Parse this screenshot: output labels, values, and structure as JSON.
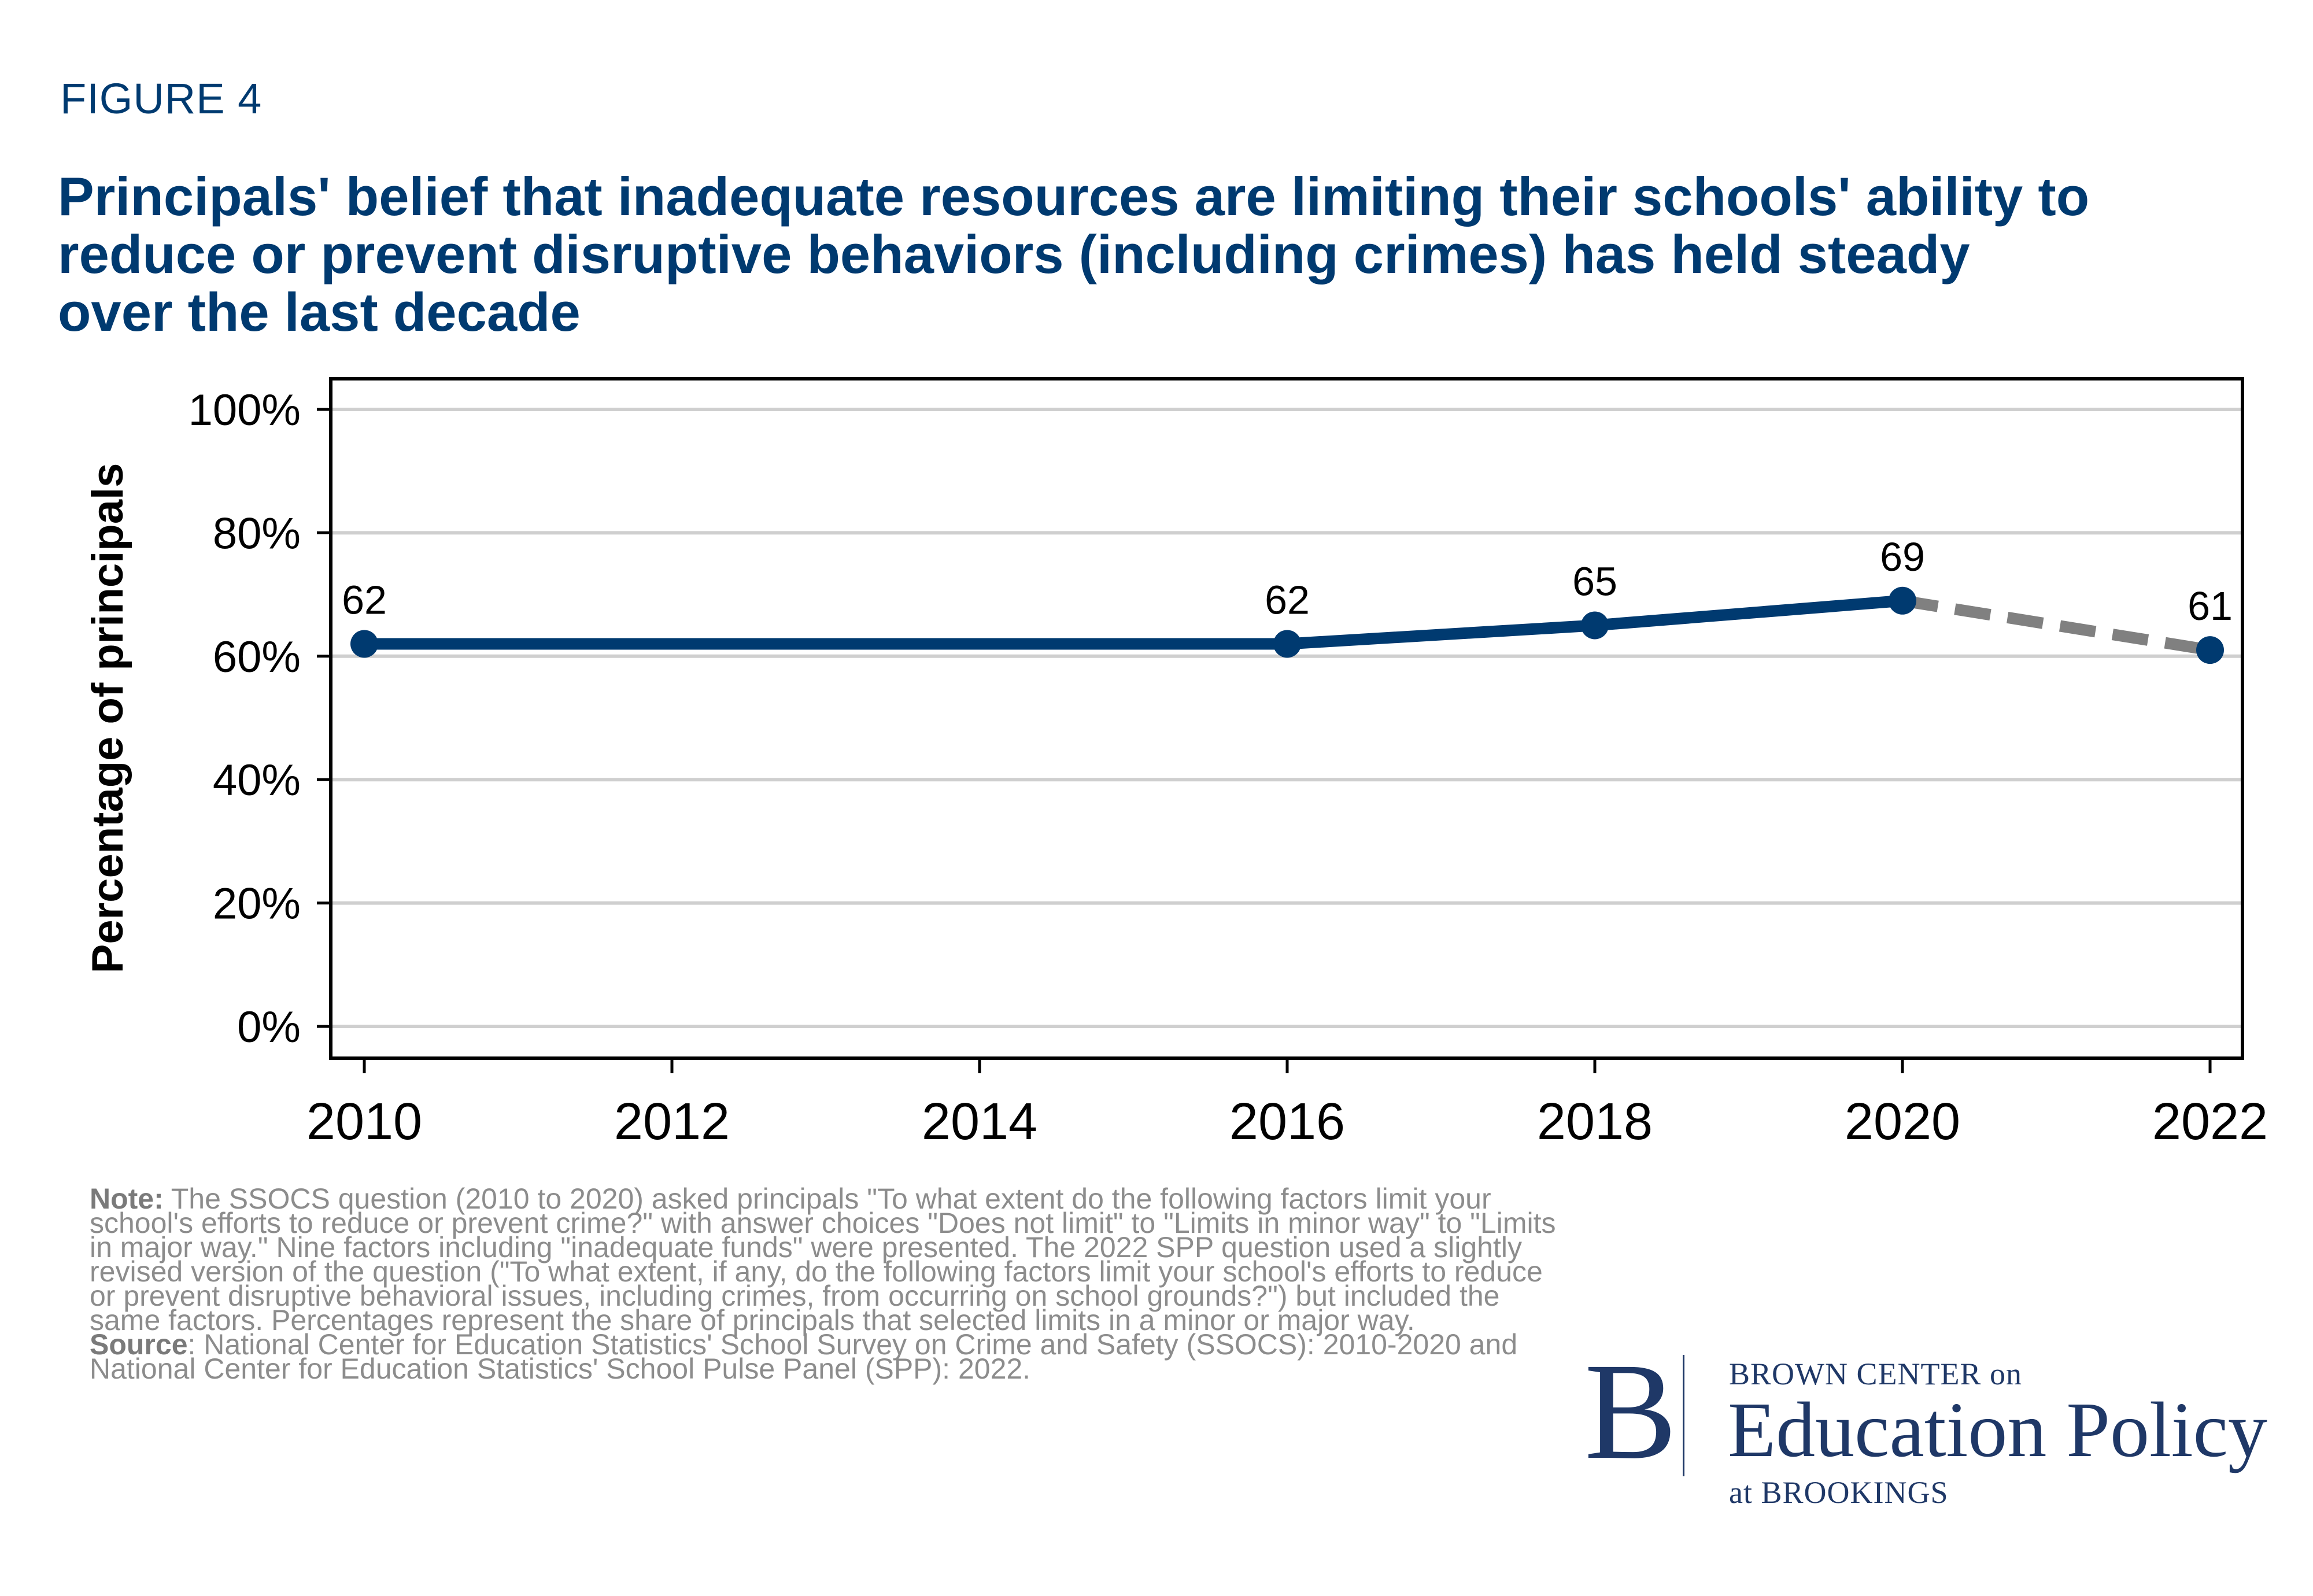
{
  "figure_label": "FIGURE 4",
  "title_lines": [
    "Principals' belief that inadequate resources are limiting their schools' ability to",
    "reduce or prevent disruptive behaviors (including crimes) has held steady",
    "over the last decade"
  ],
  "chart_data": {
    "type": "line",
    "ylabel": "Percentage of principals",
    "xlabel": "",
    "x_ticks": [
      "2010",
      "2012",
      "2014",
      "2016",
      "2018",
      "2020",
      "2022"
    ],
    "y_ticks": [
      "0%",
      "20%",
      "40%",
      "60%",
      "80%",
      "100%"
    ],
    "xlim": [
      2010,
      2022
    ],
    "ylim": [
      0,
      100
    ],
    "grid": true,
    "colors": {
      "line": "#003a70",
      "dashed": "#808080",
      "grid": "#cfcfcf",
      "axis": "#000000"
    },
    "series": [
      {
        "name": "SSOCS",
        "style": "solid",
        "x": [
          2010,
          2016,
          2018,
          2020
        ],
        "values": [
          62,
          62,
          65,
          69
        ]
      },
      {
        "name": "SPP",
        "style": "dashed",
        "x": [
          2020,
          2022
        ],
        "values": [
          69,
          61
        ]
      }
    ],
    "data_labels": [
      {
        "x": 2010,
        "y": 62,
        "text": "62"
      },
      {
        "x": 2016,
        "y": 62,
        "text": "62"
      },
      {
        "x": 2018,
        "y": 65,
        "text": "65"
      },
      {
        "x": 2020,
        "y": 69,
        "text": "69"
      },
      {
        "x": 2022,
        "y": 61,
        "text": "61"
      }
    ]
  },
  "note": {
    "note_label": "Note:",
    "note_text": " The SSOCS question (2010 to 2020) asked principals \"To what extent do the following factors limit your school's efforts to reduce or prevent crime?\" with answer choices \"Does not limit\" to \"Limits in minor way\" to \"Limits in major way.\" Nine factors including \"inadequate funds\" were presented. The 2022 SPP question used a slightly revised version of the question (\"To what extent, if any, do the following factors limit your school's efforts to reduce or prevent disruptive behavioral issues, including crimes, from occurring on school grounds?\") but included the same factors. Percentages represent the share of principals that selected limits in a minor or major way.",
    "source_label": "Source",
    "source_text": ": National Center for Education Statistics' School Survey on Crime and Safety (SSOCS): 2010-2020 and National Center for Education Statistics' School Pulse Panel (SPP): 2022."
  },
  "logo": {
    "letter": "B",
    "line1": "BROWN CENTER on",
    "line2": "Education Policy",
    "line3": "at BROOKINGS"
  }
}
